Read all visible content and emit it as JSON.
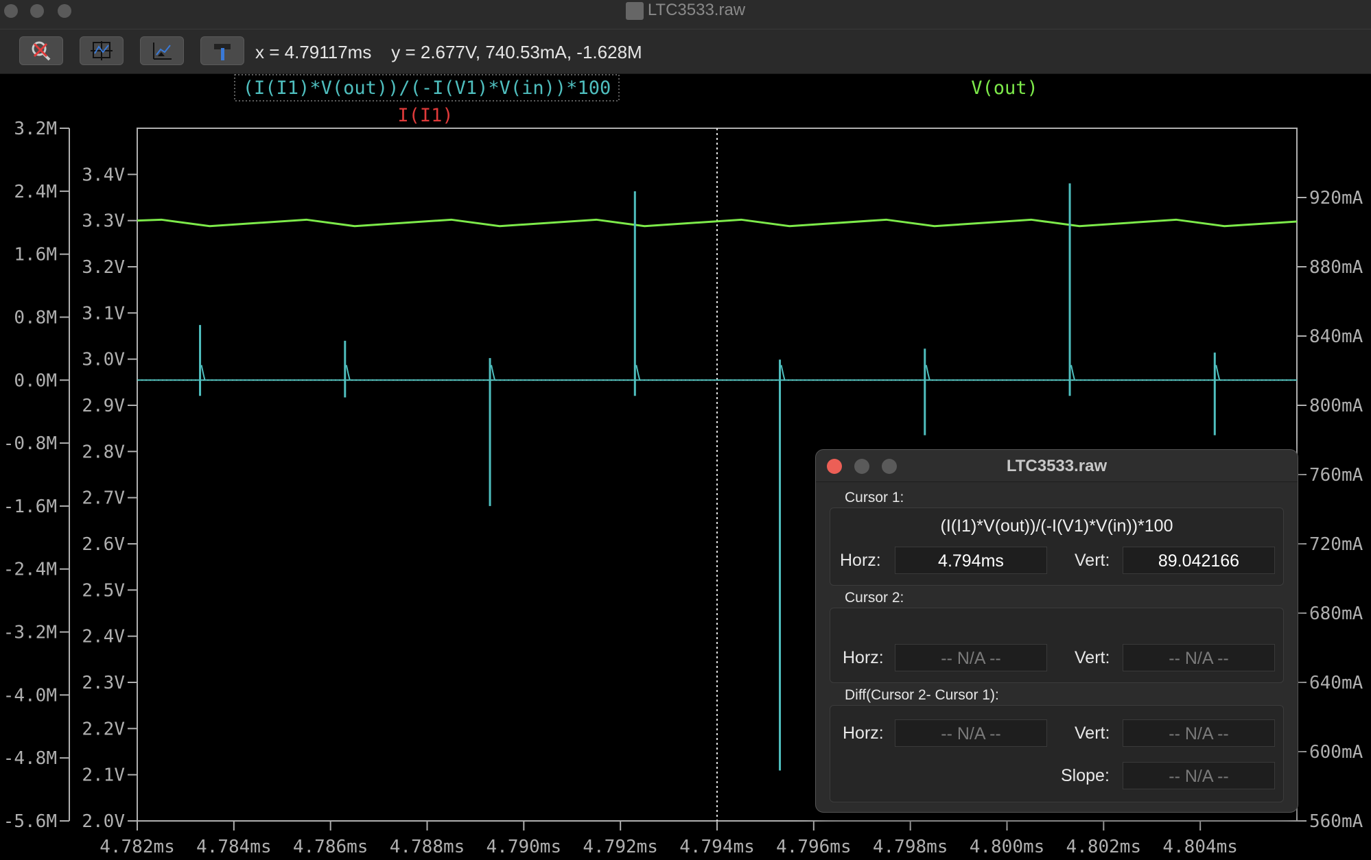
{
  "window": {
    "title": "LTC3533.raw"
  },
  "toolbar": {
    "buttons": [
      {
        "name": "zoom-cancel-button",
        "icon": "magnifier-cross-icon"
      },
      {
        "name": "autorange-button",
        "icon": "autorange-icon"
      },
      {
        "name": "pan-button",
        "icon": "pan-icon"
      },
      {
        "name": "hammer-button",
        "icon": "hammer-icon"
      }
    ],
    "readout": "x = 4.79117ms    y = 2.677V, 740.53mA, -1.628M"
  },
  "traces": {
    "efficiency": {
      "label": "(I(I1)*V(out))/(-I(V1)*V(in))*100",
      "color": "#4fbfbf"
    },
    "current": {
      "label": "I(I1)",
      "color": "#e03a3a"
    },
    "vout": {
      "label": "V(out)",
      "color": "#7dea4a"
    }
  },
  "chart_data": {
    "type": "line",
    "x_unit": "ms",
    "x_range": [
      4.782,
      4.806
    ],
    "x_ticks": [
      "4.782ms",
      "4.784ms",
      "4.786ms",
      "4.788ms",
      "4.790ms",
      "4.792ms",
      "4.794ms",
      "4.796ms",
      "4.798ms",
      "4.800ms",
      "4.802ms",
      "4.804ms"
    ],
    "left_axis_M": {
      "range": [
        -5.6,
        3.2
      ],
      "ticks": [
        "3.2M",
        "2.4M",
        "1.6M",
        "0.8M",
        "0.0M",
        "-0.8M",
        "-1.6M",
        "-2.4M",
        "-3.2M",
        "-4.0M",
        "-4.8M",
        "-5.6M"
      ]
    },
    "left_axis_V": {
      "range": [
        2.0,
        3.5
      ],
      "ticks": [
        "3.4V",
        "3.3V",
        "3.2V",
        "3.1V",
        "3.0V",
        "2.9V",
        "2.8V",
        "2.7V",
        "2.6V",
        "2.5V",
        "2.4V",
        "2.3V",
        "2.2V",
        "2.1V",
        "2.0V"
      ]
    },
    "right_axis_mA": {
      "range": [
        560,
        960
      ],
      "ticks": [
        "920mA",
        "880mA",
        "840mA",
        "800mA",
        "760mA",
        "720mA",
        "680mA",
        "640mA",
        "600mA",
        "560mA"
      ]
    },
    "series": [
      {
        "name": "V(out)",
        "axis": "V",
        "color": "#7dea4a",
        "points": [
          [
            4.782,
            3.3
          ],
          [
            4.7825,
            3.302
          ],
          [
            4.7835,
            3.288
          ],
          [
            4.7855,
            3.302
          ],
          [
            4.7865,
            3.288
          ],
          [
            4.7885,
            3.302
          ],
          [
            4.7895,
            3.288
          ],
          [
            4.7915,
            3.302
          ],
          [
            4.7925,
            3.288
          ],
          [
            4.7945,
            3.302
          ],
          [
            4.7955,
            3.288
          ],
          [
            4.7975,
            3.302
          ],
          [
            4.7985,
            3.288
          ],
          [
            4.8005,
            3.302
          ],
          [
            4.8015,
            3.288
          ],
          [
            4.8035,
            3.302
          ],
          [
            4.8045,
            3.288
          ],
          [
            4.806,
            3.298
          ]
        ]
      },
      {
        "name": "(I(I1)*V(out))/(-I(V1)*V(in))*100",
        "axis": "M",
        "color": "#4fbfbf",
        "baseline": 0.0,
        "spikes": [
          {
            "x": 4.7833,
            "max": 0.7,
            "min": -0.2
          },
          {
            "x": 4.7863,
            "max": 0.5,
            "min": -0.22
          },
          {
            "x": 4.7893,
            "max": 0.28,
            "min": -1.6
          },
          {
            "x": 4.7923,
            "max": 2.4,
            "min": -0.2
          },
          {
            "x": 4.7953,
            "max": 0.26,
            "min": -4.96
          },
          {
            "x": 4.7983,
            "max": 0.4,
            "min": -0.7
          },
          {
            "x": 4.8013,
            "max": 2.5,
            "min": -0.2
          },
          {
            "x": 4.8043,
            "max": 0.35,
            "min": -0.7
          }
        ]
      }
    ],
    "cursor_x": 4.794,
    "grid": false
  },
  "dialog": {
    "title": "LTC3533.raw",
    "cursor1": {
      "label": "Cursor 1:",
      "expr": "(I(I1)*V(out))/(-I(V1)*V(in))*100",
      "horz_label": "Horz:",
      "horz": "4.794ms",
      "vert_label": "Vert:",
      "vert": "89.042166"
    },
    "cursor2": {
      "label": "Cursor 2:",
      "horz_label": "Horz:",
      "horz": "-- N/A --",
      "vert_label": "Vert:",
      "vert": "-- N/A --"
    },
    "diff": {
      "label": "Diff(Cursor 2- Cursor 1):",
      "horz_label": "Horz:",
      "horz": "-- N/A --",
      "vert_label": "Vert:",
      "vert": "-- N/A --",
      "slope_label": "Slope:",
      "slope": "-- N/A --"
    }
  }
}
